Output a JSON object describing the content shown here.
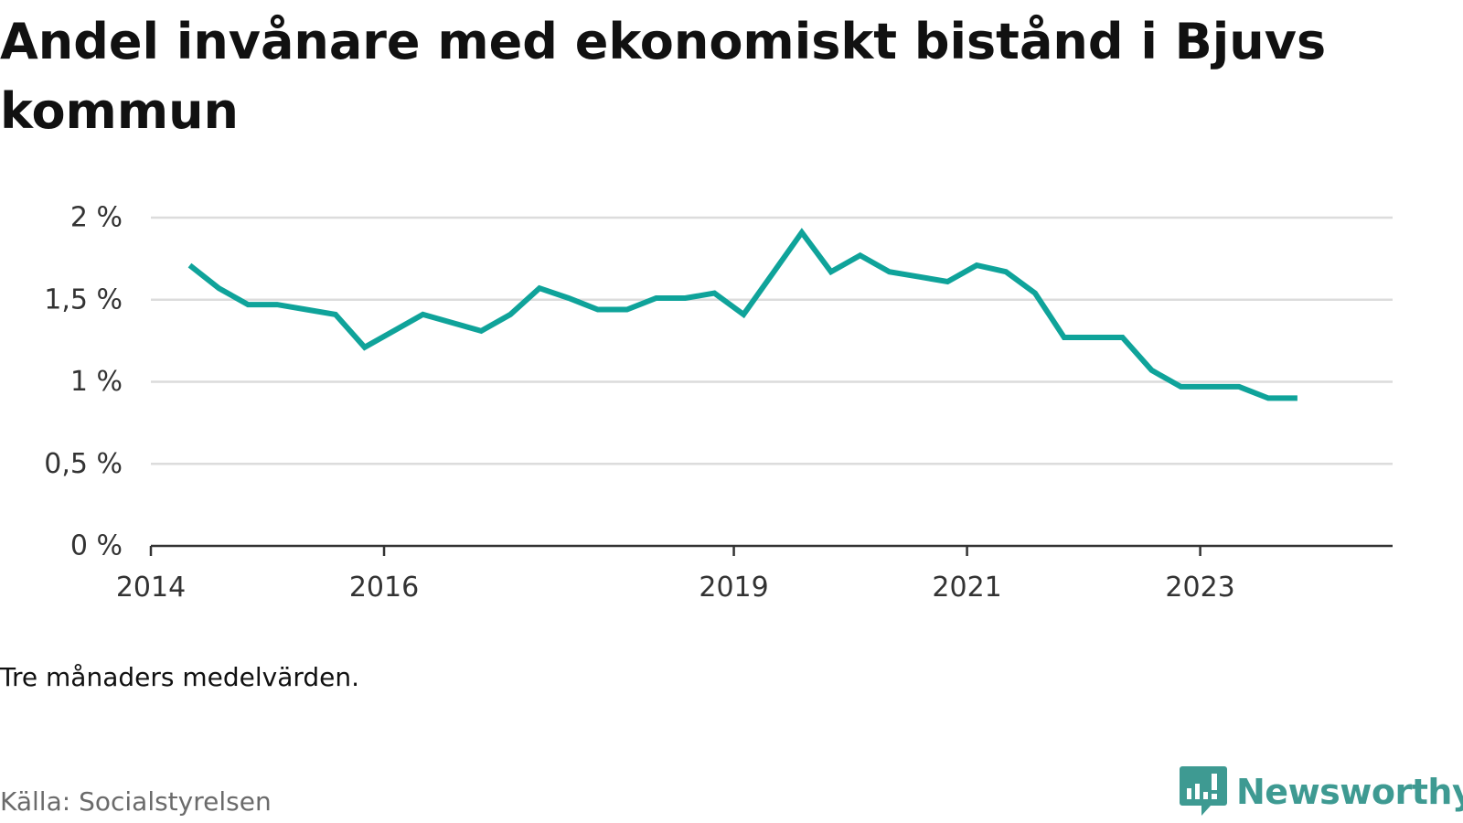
{
  "title": "Andel invånare med ekonomiskt bistånd i Bjuvs kommun",
  "note": "Tre månaders medelvärden.",
  "source": "Källa: Socialstyrelsen",
  "brand": {
    "name": "Newsworthy",
    "icon": "newsworthy-logo-icon",
    "color": "#3e9a92"
  },
  "chart_data": {
    "type": "line",
    "title": "Andel invånare med ekonomiskt bistånd i Bjuvs kommun",
    "xlabel": "",
    "ylabel": "",
    "ylim": [
      0,
      2
    ],
    "y_ticks": [
      0,
      0.5,
      1,
      1.5,
      2
    ],
    "y_tick_labels": [
      "0 %",
      "0,5 %",
      "1 %",
      "1,5 %",
      "2 %"
    ],
    "x_ticks": [
      2014,
      2016,
      2019,
      2021,
      2023
    ],
    "x_tick_labels": [
      "2014",
      "2016",
      "2019",
      "2021",
      "2023"
    ],
    "grid": true,
    "color": "#0fa39a",
    "series": [
      {
        "x": [
          "2014-05",
          "2014-08",
          "2014-11",
          "2015-02",
          "2015-05",
          "2015-08",
          "2015-11",
          "2016-02",
          "2016-05",
          "2016-08",
          "2016-11",
          "2017-02",
          "2017-05",
          "2017-08",
          "2017-11",
          "2018-02",
          "2018-05",
          "2018-08",
          "2018-11",
          "2019-02",
          "2019-05",
          "2019-08",
          "2019-11",
          "2020-02",
          "2020-05",
          "2020-08",
          "2020-11",
          "2021-02",
          "2021-05",
          "2021-08",
          "2021-11",
          "2022-02",
          "2022-05",
          "2022-08",
          "2022-11",
          "2023-02",
          "2023-05",
          "2023-08",
          "2023-11"
        ],
        "values": [
          1.71,
          1.57,
          1.47,
          1.47,
          1.44,
          1.41,
          1.21,
          1.31,
          1.41,
          1.36,
          1.31,
          1.41,
          1.57,
          1.51,
          1.44,
          1.44,
          1.51,
          1.51,
          1.54,
          1.41,
          1.66,
          1.91,
          1.67,
          1.77,
          1.67,
          1.64,
          1.61,
          1.71,
          1.67,
          1.54,
          1.27,
          1.27,
          1.27,
          1.07,
          0.97,
          0.97,
          0.97,
          0.9,
          0.9
        ]
      }
    ]
  }
}
